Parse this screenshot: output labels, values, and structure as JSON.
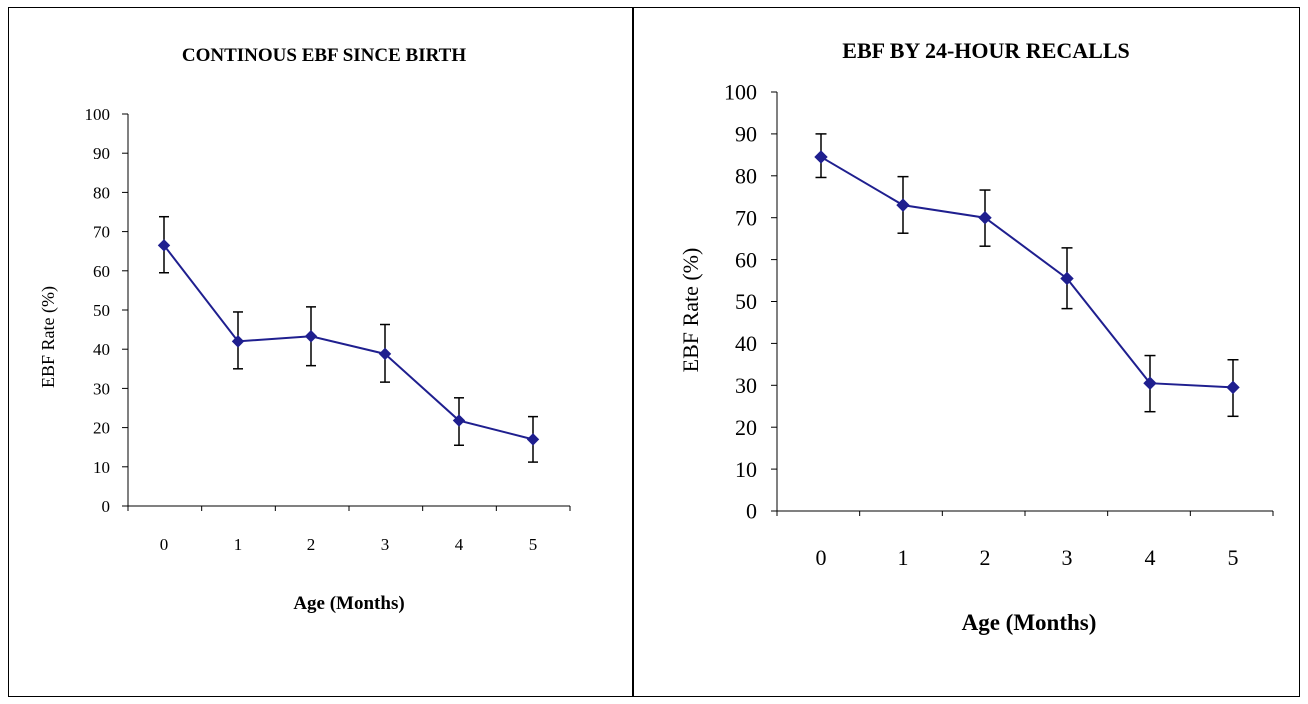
{
  "chart_data": [
    {
      "type": "line",
      "title": "CONTINOUS EBF SINCE BIRTH",
      "xlabel": "Age (Months)",
      "ylabel": "EBF Rate (%)",
      "categories": [
        "0",
        "1",
        "2",
        "3",
        "4",
        "5"
      ],
      "yticks": [
        "0",
        "10",
        "20",
        "30",
        "40",
        "50",
        "60",
        "70",
        "80",
        "90",
        "100"
      ],
      "ylim": [
        0,
        100
      ],
      "series": [
        {
          "values": [
            66.5,
            42,
            43.3,
            38.8,
            21.8,
            17
          ],
          "error_upper": [
            73.8,
            49.5,
            50.8,
            46.3,
            27.6,
            22.8
          ],
          "error_lower": [
            59.5,
            35,
            35.8,
            31.6,
            15.5,
            11.2
          ]
        }
      ],
      "colors": {
        "series": "#1f1f8f",
        "axis": "#000000"
      },
      "grid": false,
      "legend": "none"
    },
    {
      "type": "line",
      "title": "EBF BY 24-HOUR RECALLS",
      "xlabel": "Age  (Months)",
      "ylabel": "EBF Rate (%)",
      "categories": [
        "0",
        "1",
        "2",
        "3",
        "4",
        "5"
      ],
      "yticks": [
        "0",
        "10",
        "20",
        "30",
        "40",
        "50",
        "60",
        "70",
        "80",
        "90",
        "100"
      ],
      "ylim": [
        0,
        100
      ],
      "series": [
        {
          "values": [
            84.5,
            73,
            70,
            55.5,
            30.5,
            29.5
          ],
          "error_upper": [
            90,
            79.8,
            76.6,
            62.8,
            37.1,
            36.1
          ],
          "error_lower": [
            79.6,
            66.3,
            63.2,
            48.3,
            23.7,
            22.6
          ]
        }
      ],
      "colors": {
        "series": "#1f1f8f",
        "axis": "#000000"
      },
      "grid": false,
      "legend": "none"
    }
  ]
}
